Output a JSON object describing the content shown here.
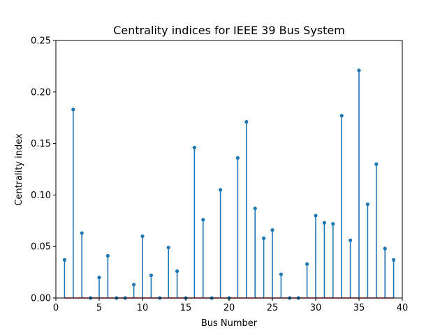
{
  "chart_data": {
    "type": "stem",
    "title": "Centrality indices for IEEE 39 Bus System",
    "xlabel": "Bus Number",
    "ylabel": "Centrality index",
    "xlim": [
      0,
      40
    ],
    "ylim": [
      0,
      0.25
    ],
    "xticks": [
      0,
      5,
      10,
      15,
      20,
      25,
      30,
      35,
      40
    ],
    "xtick_labels": [
      "0",
      "5",
      "10",
      "15",
      "20",
      "25",
      "30",
      "35",
      "40"
    ],
    "yticks": [
      0,
      0.05,
      0.1,
      0.15,
      0.2,
      0.25
    ],
    "ytick_labels": [
      "0.00",
      "0.05",
      "0.10",
      "0.15",
      "0.20",
      "0.25"
    ],
    "grid": false,
    "stem_color": "#1f77b4",
    "baseline_color": "#d62728",
    "x": [
      1,
      2,
      3,
      4,
      5,
      6,
      7,
      8,
      9,
      10,
      11,
      12,
      13,
      14,
      15,
      16,
      17,
      18,
      19,
      20,
      21,
      22,
      23,
      24,
      25,
      26,
      27,
      28,
      29,
      30,
      31,
      32,
      33,
      34,
      35,
      36,
      37,
      38,
      39
    ],
    "values": [
      0.037,
      0.183,
      0.063,
      0.0,
      0.02,
      0.041,
      0.0,
      0.0,
      0.013,
      0.06,
      0.022,
      0.0,
      0.049,
      0.026,
      0.0,
      0.146,
      0.076,
      0.0,
      0.105,
      0.0,
      0.136,
      0.171,
      0.087,
      0.058,
      0.066,
      0.023,
      0.0,
      0.0,
      0.033,
      0.08,
      0.073,
      0.072,
      0.177,
      0.056,
      0.221,
      0.091,
      0.13,
      0.048,
      0.037
    ]
  }
}
